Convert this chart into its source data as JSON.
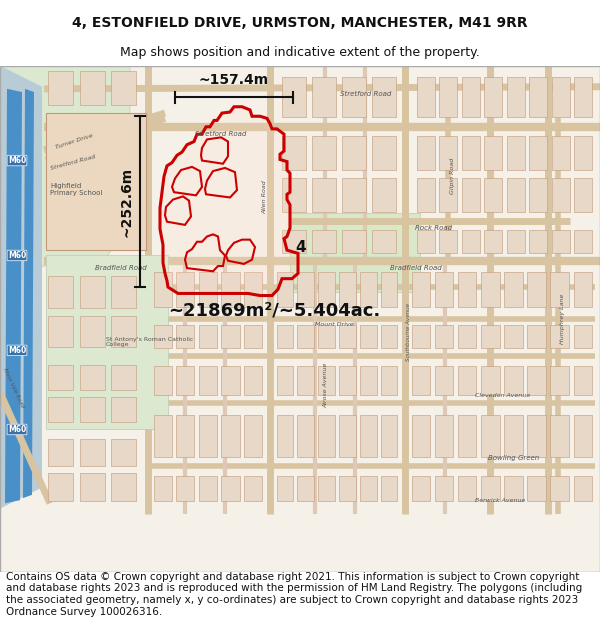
{
  "title_line1": "4, ESTONFIELD DRIVE, URMSTON, MANCHESTER, M41 9RR",
  "title_line2": "Map shows position and indicative extent of the property.",
  "footer_text": "Contains OS data © Crown copyright and database right 2021. This information is subject to Crown copyright and database rights 2023 and is reproduced with the permission of HM Land Registry. The polygons (including the associated geometry, namely x, y co-ordinates) are subject to Crown copyright and database rights 2023 Ordnance Survey 100026316.",
  "area_label": "~21869m²/~5.404ac.",
  "width_label": "~157.4m",
  "height_label": "~252.6m",
  "property_number": "4",
  "title_fontsize": 10,
  "subtitle_fontsize": 9,
  "footer_fontsize": 7.5,
  "fig_width": 6.0,
  "fig_height": 6.25,
  "text_color": "#111111"
}
